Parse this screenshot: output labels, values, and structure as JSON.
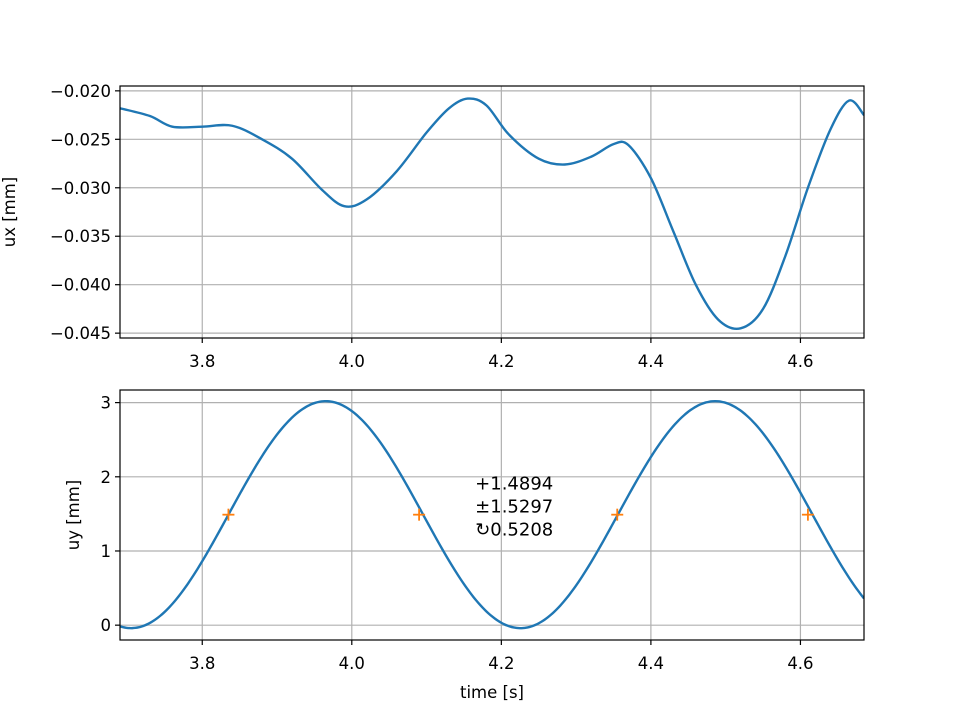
{
  "chart_data": [
    {
      "type": "line",
      "title": "",
      "xlabel": "",
      "ylabel": "ux [mm]",
      "xlim": [
        3.69,
        4.685
      ],
      "ylim": [
        -0.0455,
        -0.0195
      ],
      "grid": true,
      "xticks": [
        3.8,
        4.0,
        4.2,
        4.4,
        4.6
      ],
      "xtick_labels": [
        "3.8",
        "4.0",
        "4.2",
        "4.4",
        "4.6"
      ],
      "yticks": [
        -0.02,
        -0.025,
        -0.03,
        -0.035,
        -0.04,
        -0.045
      ],
      "ytick_labels": [
        "−0.020",
        "−0.025",
        "−0.030",
        "−0.035",
        "−0.040",
        "−0.045"
      ],
      "series": [
        {
          "color": "#1f77b4",
          "x": [
            3.69,
            3.73,
            3.76,
            3.8,
            3.84,
            3.88,
            3.92,
            3.96,
            3.99,
            4.02,
            4.06,
            4.1,
            4.13,
            4.155,
            4.18,
            4.21,
            4.25,
            4.285,
            4.32,
            4.35,
            4.37,
            4.4,
            4.43,
            4.46,
            4.49,
            4.52,
            4.55,
            4.58,
            4.61,
            4.64,
            4.665,
            4.685
          ],
          "y": [
            -0.0218,
            -0.0226,
            -0.0237,
            -0.0237,
            -0.0236,
            -0.025,
            -0.027,
            -0.0302,
            -0.0319,
            -0.0312,
            -0.0283,
            -0.0243,
            -0.0218,
            -0.0208,
            -0.0215,
            -0.0245,
            -0.027,
            -0.0276,
            -0.0268,
            -0.0255,
            -0.0256,
            -0.029,
            -0.0345,
            -0.04,
            -0.0436,
            -0.0445,
            -0.0425,
            -0.037,
            -0.03,
            -0.024,
            -0.021,
            -0.0225
          ]
        }
      ]
    },
    {
      "type": "line",
      "title": "",
      "xlabel": "time [s]",
      "ylabel": "uy [mm]",
      "xlim": [
        3.69,
        4.685
      ],
      "ylim": [
        -0.2,
        3.17
      ],
      "grid": true,
      "xticks": [
        3.8,
        4.0,
        4.2,
        4.4,
        4.6
      ],
      "xtick_labels": [
        "3.8",
        "4.0",
        "4.2",
        "4.4",
        "4.6"
      ],
      "yticks": [
        0,
        1,
        2,
        3
      ],
      "ytick_labels": [
        "0",
        "1",
        "2",
        "3"
      ],
      "series": [
        {
          "color": "#1f77b4",
          "amplitude": 1.5297,
          "offset": 1.4894,
          "period": 0.5208,
          "phase_zero_crossing": 3.835,
          "x_range": [
            3.69,
            4.685
          ]
        },
        {
          "type": "scatter",
          "marker": "+",
          "color": "#ff7f0e",
          "x": [
            3.835,
            4.09,
            4.355,
            4.61
          ],
          "y": [
            1.4894,
            1.4894,
            1.4894,
            1.4894
          ]
        }
      ],
      "annotation": {
        "lines": [
          "+1.4894",
          "±1.5297",
          "↻0.5208"
        ],
        "x": 4.165,
        "y": 1.83
      }
    }
  ]
}
